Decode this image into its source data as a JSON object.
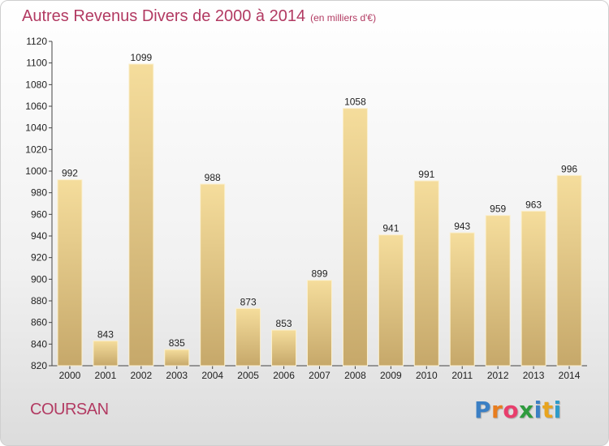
{
  "header": {
    "title": "Autres Revenus Divers de 2000 à 2014",
    "subtitle": "(en milliers d'€)"
  },
  "footer": {
    "place": "COURSAN",
    "logo_letters": [
      "P",
      "r",
      "o",
      "x",
      "i",
      "t",
      "i"
    ],
    "logo_colors": [
      "#3b7fc4",
      "#e87d1e",
      "#e83e6c",
      "#2e9b3e",
      "#3b7fc4",
      "#e8a41e",
      "#2e9bc9"
    ]
  },
  "chart_data": {
    "type": "bar",
    "title": "Autres Revenus Divers de 2000 à 2014",
    "subtitle": "(en milliers d'€)",
    "categories": [
      "2000",
      "2001",
      "2002",
      "2003",
      "2004",
      "2005",
      "2006",
      "2007",
      "2008",
      "2009",
      "2010",
      "2011",
      "2012",
      "2013",
      "2014"
    ],
    "values": [
      992,
      843,
      1099,
      835,
      988,
      873,
      853,
      899,
      1058,
      941,
      991,
      943,
      959,
      963,
      996
    ],
    "ylim": [
      820,
      1120
    ],
    "yticks": [
      820,
      840,
      860,
      880,
      900,
      920,
      940,
      960,
      980,
      1000,
      1020,
      1040,
      1060,
      1080,
      1100,
      1120
    ],
    "grid": false,
    "bar_color_light": "#f5dd9c",
    "bar_color_dark": "#c6a86a"
  }
}
